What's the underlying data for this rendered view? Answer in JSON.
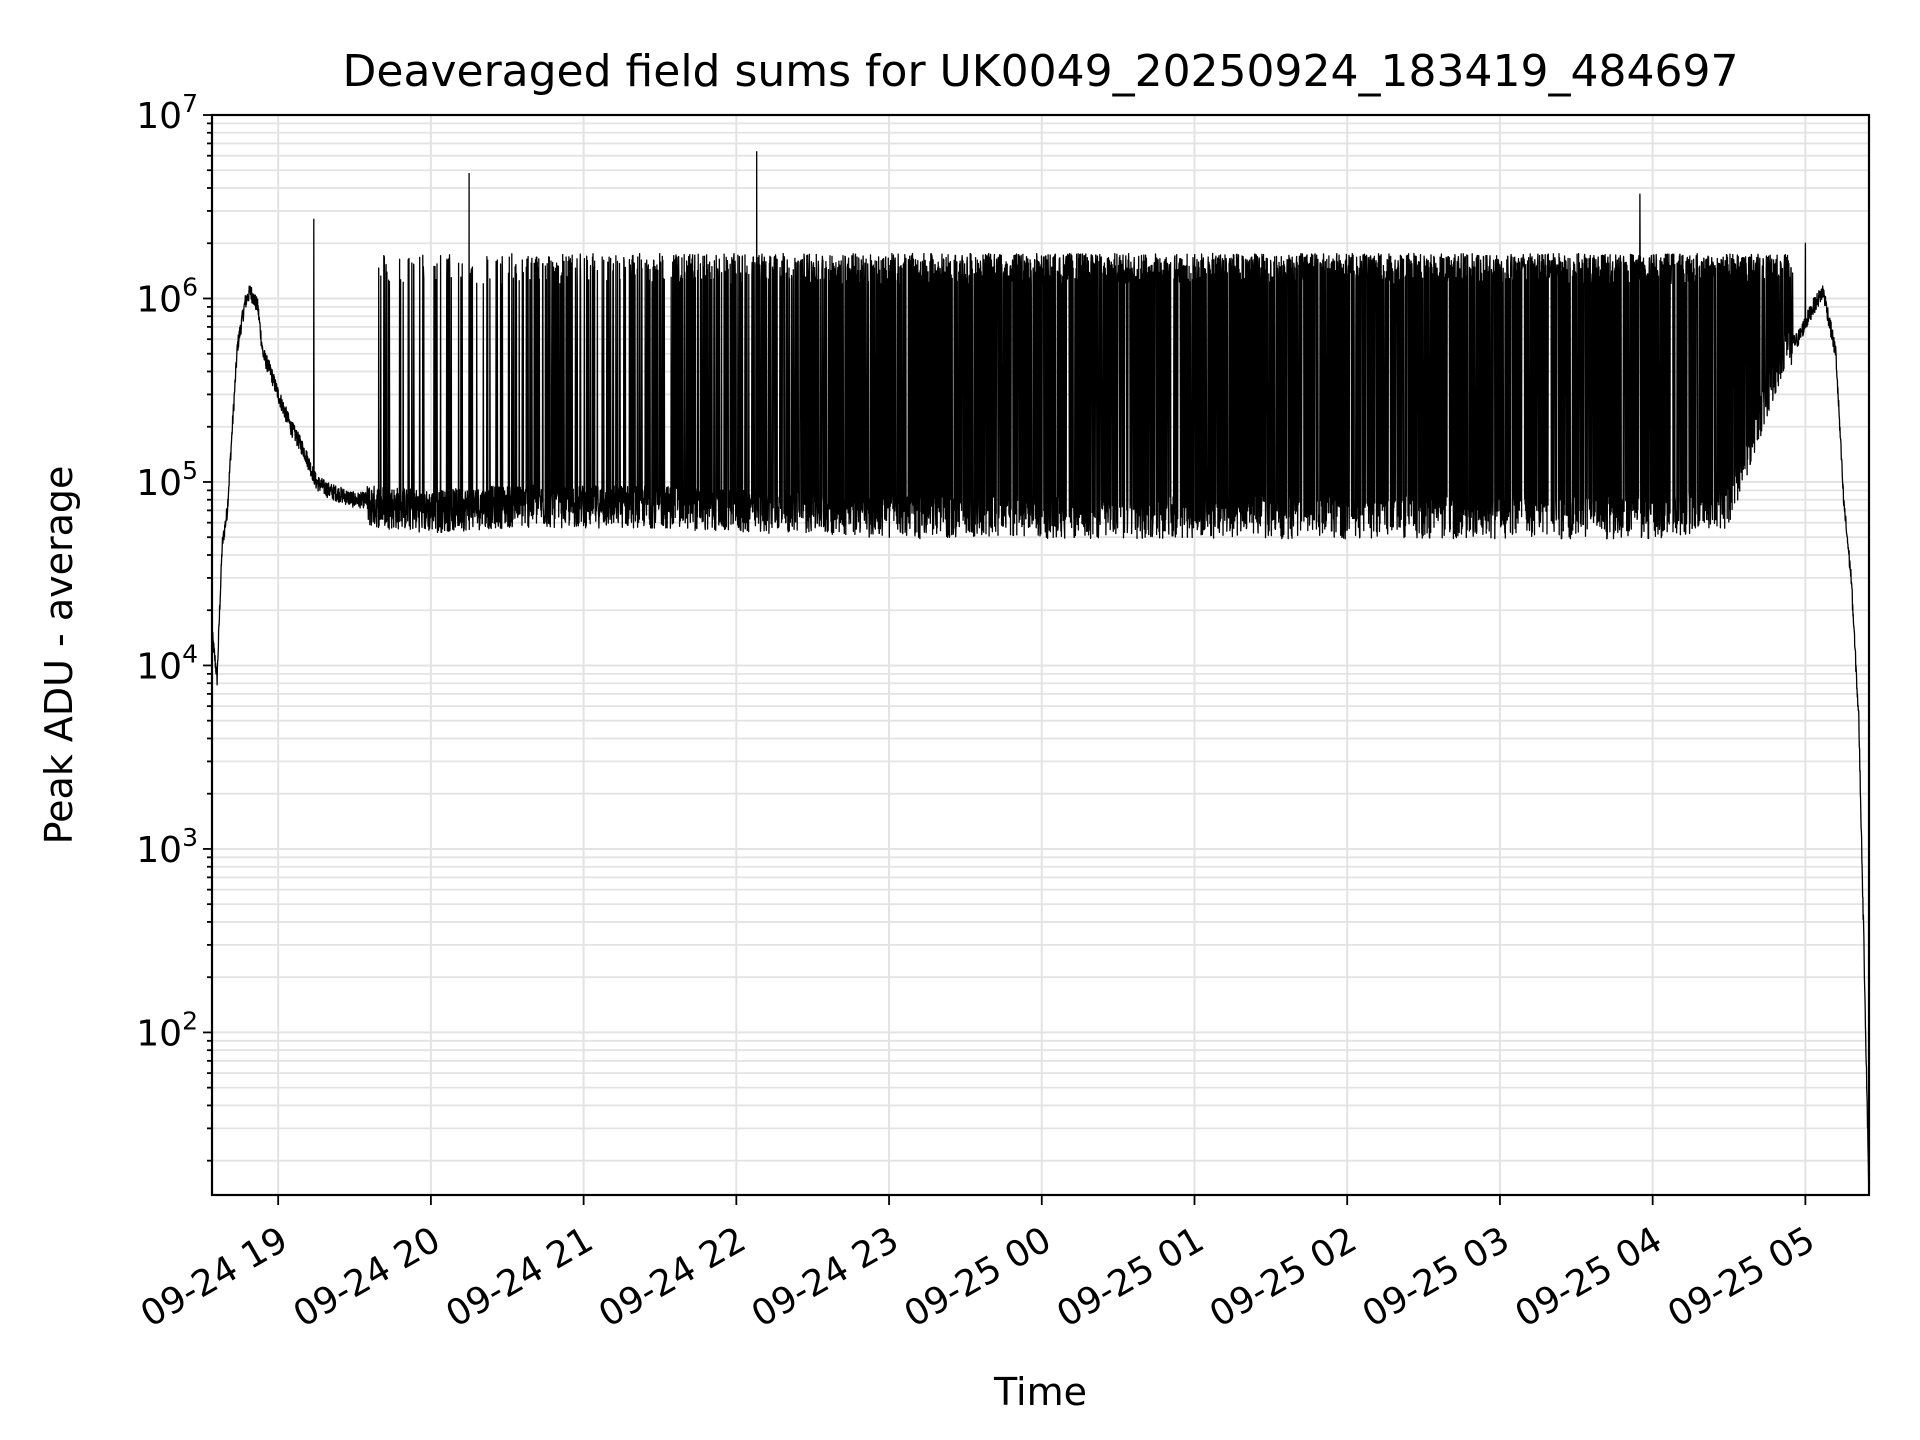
{
  "chart_data": {
    "type": "line",
    "title": "Deaveraged field sums for UK0049_20250924_183419_484697",
    "xlabel": "Time",
    "ylabel": "Peak ADU - average",
    "yscale": "log",
    "ylim": [
      13,
      10000000
    ],
    "xlim": [
      "2025-09-24 18:34",
      "2025-09-25 05:25"
    ],
    "grid": true,
    "x_ticks": [
      "09-24 19",
      "09-24 20",
      "09-24 21",
      "09-24 22",
      "09-24 23",
      "09-25 00",
      "09-25 01",
      "09-25 02",
      "09-25 03",
      "09-25 04",
      "09-25 05"
    ],
    "y_ticks": [
      {
        "base": "10",
        "exp": "2",
        "value": 100
      },
      {
        "base": "10",
        "exp": "3",
        "value": 1000
      },
      {
        "base": "10",
        "exp": "4",
        "value": 10000
      },
      {
        "base": "10",
        "exp": "5",
        "value": 100000
      },
      {
        "base": "10",
        "exp": "6",
        "value": 1000000
      },
      {
        "base": "10",
        "exp": "7",
        "value": 10000000
      }
    ],
    "line_color": "#000000",
    "series": [
      {
        "x": [
          "2025-09-24 18:34",
          "2025-09-24 18:36",
          "2025-09-24 18:37",
          "2025-09-24 18:38",
          "2025-09-24 18:40",
          "2025-09-24 18:42",
          "2025-09-24 18:44",
          "2025-09-24 18:47",
          "2025-09-24 18:49",
          "2025-09-24 18:52",
          "2025-09-24 18:54",
          "2025-09-24 18:57",
          "2025-09-24 19:00",
          "2025-09-24 19:05",
          "2025-09-24 19:10",
          "2025-09-24 19:15",
          "2025-09-24 19:20",
          "2025-09-24 19:25",
          "2025-09-24 19:30",
          "2025-09-24 19:40",
          "2025-09-24 20:00",
          "2025-09-24 20:30",
          "2025-09-24 21:00",
          "2025-09-24 21:30",
          "2025-09-24 22:00",
          "2025-09-24 22:30",
          "2025-09-24 23:00",
          "2025-09-24 23:30",
          "2025-09-25 00:00",
          "2025-09-25 00:30",
          "2025-09-25 01:00",
          "2025-09-25 01:30",
          "2025-09-25 02:00",
          "2025-09-25 02:30",
          "2025-09-25 03:00",
          "2025-09-25 03:30",
          "2025-09-25 04:00",
          "2025-09-25 04:30",
          "2025-09-25 04:50",
          "2025-09-25 04:57",
          "2025-09-25 05:03",
          "2025-09-25 05:07",
          "2025-09-25 05:12",
          "2025-09-25 05:15",
          "2025-09-25 05:18",
          "2025-09-25 05:21",
          "2025-09-25 05:23",
          "2025-09-25 05:25"
        ],
        "values": [
          15000,
          8500,
          20000,
          45000,
          70000,
          200000,
          550000,
          950000,
          1100000,
          900000,
          500000,
          400000,
          300000,
          200000,
          150000,
          100000,
          90000,
          85000,
          80000,
          80000,
          75000,
          80000,
          80000,
          80000,
          75000,
          75000,
          70000,
          70000,
          70000,
          70000,
          70000,
          70000,
          70000,
          70000,
          70000,
          70000,
          70000,
          80000,
          500000,
          600000,
          900000,
          1100000,
          500000,
          80000,
          30000,
          5000,
          300,
          13
        ],
        "spike_band": {
          "x_start": "2025-09-24 19:35",
          "x_end": "2025-09-25 04:55",
          "low": 50000,
          "high": 1600000
        }
      }
    ],
    "peaks": [
      {
        "x": "2025-09-24 19:14",
        "value": 2700000
      },
      {
        "x": "2025-09-24 20:15",
        "value": 4800000
      },
      {
        "x": "2025-09-24 22:08",
        "value": 6300000
      },
      {
        "x": "2025-09-25 03:55",
        "value": 3700000
      },
      {
        "x": "2025-09-25 05:00",
        "value": 2000000
      }
    ]
  }
}
